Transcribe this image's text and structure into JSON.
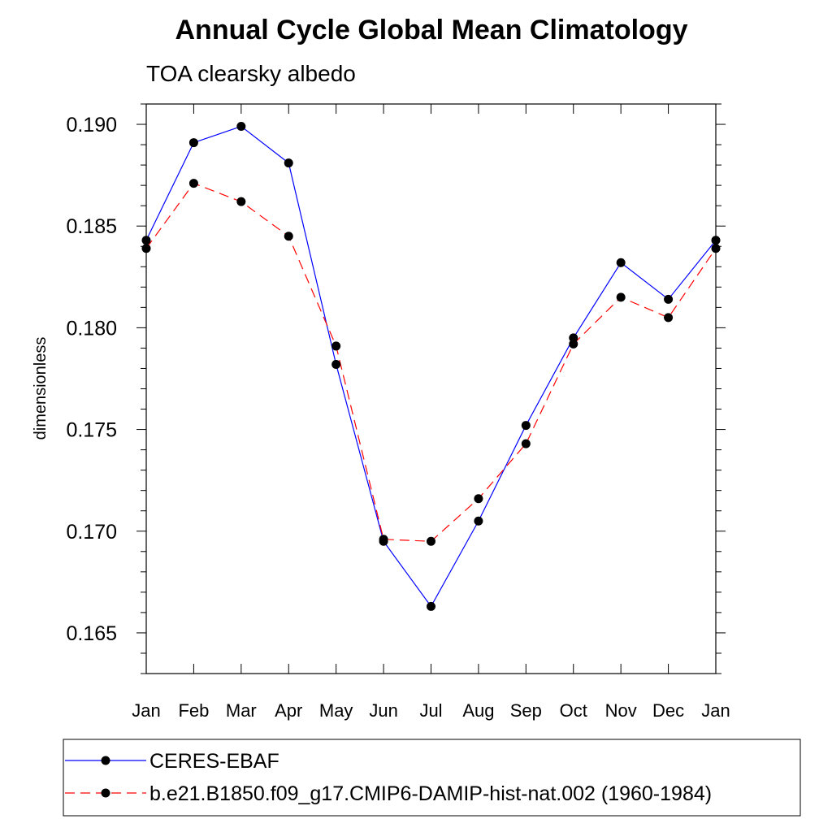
{
  "chart_data": {
    "type": "line",
    "title": "Annual Cycle Global Mean Climatology",
    "subtitle": "TOA clearsky albedo",
    "xlabel": "",
    "ylabel": "dimensionless",
    "categories": [
      "Jan",
      "Feb",
      "Mar",
      "Apr",
      "May",
      "Jun",
      "Jul",
      "Aug",
      "Sep",
      "Oct",
      "Nov",
      "Dec",
      "Jan"
    ],
    "ylim": [
      0.163,
      0.191
    ],
    "yticks": [
      "0.165",
      "0.170",
      "0.175",
      "0.180",
      "0.185",
      "0.190"
    ],
    "grid": false,
    "legend_position": "bottom",
    "series": [
      {
        "name": "CERES-EBAF",
        "color": "#0000ff",
        "line_style": "solid",
        "marker": "filled-circle",
        "values": [
          0.1843,
          0.1891,
          0.1899,
          0.1881,
          0.1782,
          0.1695,
          0.1663,
          0.1705,
          0.1752,
          0.1795,
          0.1832,
          0.1814,
          0.1843
        ]
      },
      {
        "name": "b.e21.B1850.f09_g17.CMIP6-DAMIP-hist-nat.002 (1960-1984)",
        "color": "#ff0000",
        "line_style": "dashed",
        "marker": "filled-circle",
        "values": [
          0.1839,
          0.1871,
          0.1862,
          0.1845,
          0.1791,
          0.1696,
          0.1695,
          0.1716,
          0.1743,
          0.1792,
          0.1815,
          0.1805,
          0.1839
        ]
      }
    ]
  }
}
